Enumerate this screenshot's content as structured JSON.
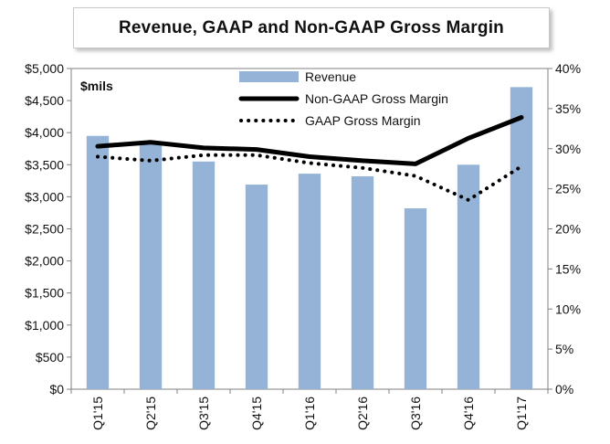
{
  "chart_data": {
    "type": "bar",
    "title": "Revenue, GAAP  and Non-GAAP  Gross Margin",
    "unit_label": "$mils",
    "categories": [
      "Q1'15",
      "Q2'15",
      "Q3'15",
      "Q4'15",
      "Q1'16",
      "Q2'16",
      "Q3'16",
      "Q4'16",
      "Q1'17"
    ],
    "series": [
      {
        "name": "Revenue",
        "kind": "bar",
        "axis": "left",
        "color": "#95b3d7",
        "values": [
          3950,
          3830,
          3550,
          3190,
          3360,
          3320,
          2820,
          3500,
          4710
        ]
      },
      {
        "name": "Non-GAAP Gross Margin",
        "kind": "line",
        "axis": "right",
        "color": "#000000",
        "style": "solid",
        "values": [
          30.3,
          30.8,
          30.1,
          29.9,
          29.0,
          28.5,
          28.1,
          31.3,
          33.9
        ]
      },
      {
        "name": "GAAP Gross Margin",
        "kind": "line",
        "axis": "right",
        "color": "#000000",
        "style": "dotted",
        "values": [
          29.0,
          28.5,
          29.2,
          29.2,
          28.2,
          27.6,
          26.6,
          23.6,
          27.8
        ]
      }
    ],
    "left_axis": {
      "ylim": [
        0,
        5000
      ],
      "ticks": [
        0,
        500,
        1000,
        1500,
        2000,
        2500,
        3000,
        3500,
        4000,
        4500,
        5000
      ],
      "tick_labels": [
        "$0",
        "$500",
        "$1,000",
        "$1,500",
        "$2,000",
        "$2,500",
        "$3,000",
        "$3,500",
        "$4,000",
        "$4,500",
        "$5,000"
      ]
    },
    "right_axis": {
      "ylim": [
        0,
        40
      ],
      "ticks": [
        0,
        5,
        10,
        15,
        20,
        25,
        30,
        35,
        40
      ],
      "tick_labels": [
        "0%",
        "5%",
        "10%",
        "15%",
        "20%",
        "25%",
        "30%",
        "35%",
        "40%"
      ]
    },
    "grid": false,
    "legend_position": "top"
  }
}
